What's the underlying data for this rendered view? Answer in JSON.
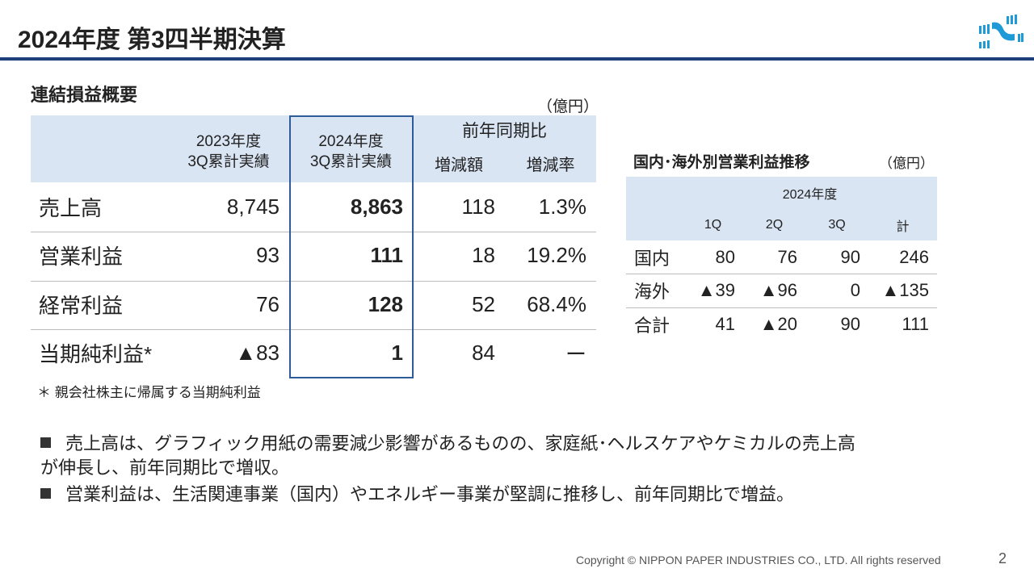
{
  "header": {
    "title": "2024年度 第3四半期決算",
    "logo": "nippon-paper-logo"
  },
  "pl": {
    "title": "連結損益概要",
    "unit": "（億円）",
    "cols": [
      "2023年度\n3Q累計実績",
      "2024年度\n3Q累計実績",
      "前年同期比",
      "増減額",
      "増減率"
    ],
    "rows": [
      {
        "label": "売上高",
        "v2023": "8,745",
        "v2024": "8,863",
        "diff": "118",
        "rate": "1.3%"
      },
      {
        "label": "営業利益",
        "v2023": "93",
        "v2024": "111",
        "diff": "18",
        "rate": "19.2%"
      },
      {
        "label": "経常利益",
        "v2023": "76",
        "v2024": "128",
        "diff": "52",
        "rate": "68.4%"
      },
      {
        "label": "当期純利益*",
        "v2023": "▲83",
        "v2024": "1",
        "diff": "84",
        "rate": "ー"
      }
    ],
    "note": "＊ 親会社株主に帰属する当期純利益"
  },
  "seg": {
    "title": "国内･海外別営業利益推移",
    "unit": "（億円）",
    "year": "2024年度",
    "cols": [
      "1Q",
      "2Q",
      "3Q",
      "計"
    ],
    "rows": [
      {
        "label": "国内",
        "vals": [
          "80",
          "76",
          "90",
          "246"
        ]
      },
      {
        "label": "海外",
        "vals": [
          "▲39",
          "▲96",
          "0",
          "▲135"
        ]
      },
      {
        "label": "合計",
        "vals": [
          "41",
          "▲20",
          "90",
          "111"
        ]
      }
    ]
  },
  "bullets": [
    "売上高は、グラフィック用紙の需要減少影響があるものの、家庭紙･ヘルスケアやケミカルの売上高\nが伸長し、前年同期比で増収。",
    "営業利益は、生活関連事業（国内）やエネルギー事業が堅調に推移し、前年同期比で増益。"
  ],
  "footer": {
    "copyright": "Copyright © NIPPON PAPER INDUSTRIES CO., LTD. All rights reserved",
    "page": "2"
  },
  "colors": {
    "accent": "#1f3f7a",
    "header_bg": "#dae5f4",
    "box": "#2e5c9a"
  }
}
